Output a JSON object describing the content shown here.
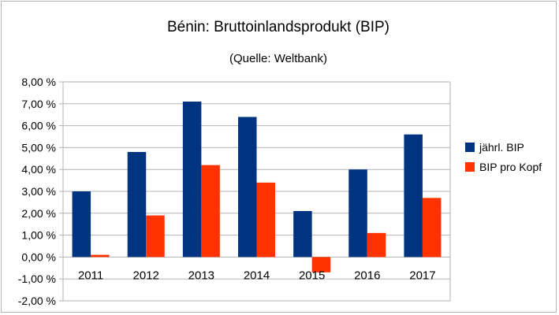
{
  "chart_data": {
    "type": "bar",
    "title": "Bénin: Bruttoinlandsprodukt (BIP)",
    "subtitle": "(Quelle: Weltbank)",
    "categories": [
      "2011",
      "2012",
      "2013",
      "2014",
      "2015",
      "2016",
      "2017"
    ],
    "series": [
      {
        "name": "jährl. BIP",
        "color": "#003380",
        "values": [
          3.0,
          4.8,
          7.1,
          6.4,
          2.1,
          4.0,
          5.6
        ]
      },
      {
        "name": "BIP pro Kopf",
        "color": "#ff3300",
        "values": [
          0.1,
          1.9,
          4.2,
          3.4,
          -0.7,
          1.1,
          2.7
        ]
      }
    ],
    "ylim": [
      -2,
      8
    ],
    "ytick_step": 1,
    "ytick_labels": [
      "-2,00 %",
      "-1,00 %",
      "0,00 %",
      "1,00 %",
      "2,00 %",
      "3,00 %",
      "4,00 %",
      "5,00 %",
      "6,00 %",
      "7,00 %",
      "8,00 %"
    ],
    "grid": true,
    "legend_position": "right"
  }
}
